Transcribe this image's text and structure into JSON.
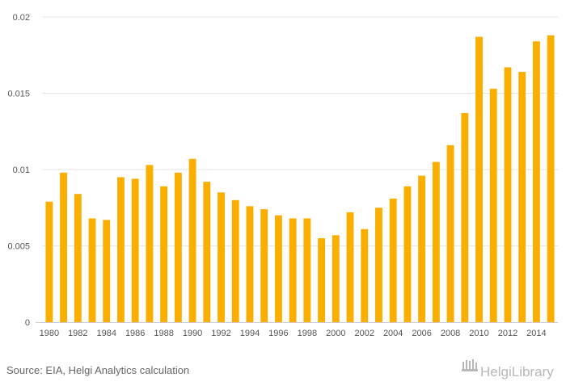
{
  "chart_data": {
    "type": "bar",
    "categories": [
      "1980",
      "1981",
      "1982",
      "1983",
      "1984",
      "1985",
      "1986",
      "1987",
      "1988",
      "1989",
      "1990",
      "1991",
      "1992",
      "1993",
      "1994",
      "1995",
      "1996",
      "1997",
      "1998",
      "1999",
      "2000",
      "2001",
      "2002",
      "2003",
      "2004",
      "2005",
      "2006",
      "2007",
      "2008",
      "2009",
      "2010",
      "2011",
      "2012",
      "2013",
      "2014",
      "2015"
    ],
    "values": [
      0.0079,
      0.0098,
      0.0084,
      0.0068,
      0.0067,
      0.0095,
      0.0094,
      0.0103,
      0.0089,
      0.0098,
      0.0107,
      0.0092,
      0.0085,
      0.008,
      0.0076,
      0.0074,
      0.007,
      0.0068,
      0.0068,
      0.0055,
      0.0057,
      0.0072,
      0.0061,
      0.0075,
      0.0081,
      0.0089,
      0.0096,
      0.0105,
      0.0116,
      0.0137,
      0.0187,
      0.0153,
      0.0167,
      0.0164,
      0.0184,
      0.0188
    ],
    "x_tick_labels": [
      "1980",
      "1982",
      "1984",
      "1986",
      "1988",
      "1990",
      "1992",
      "1994",
      "1996",
      "1998",
      "2000",
      "2002",
      "2004",
      "2006",
      "2008",
      "2010",
      "2012",
      "2014"
    ],
    "y_ticks": [
      0,
      0.005,
      0.01,
      0.015,
      0.02
    ],
    "y_tick_labels": [
      "0",
      "0.005",
      "0.01",
      "0.015",
      "0.02"
    ],
    "ylim": [
      0,
      0.02
    ],
    "title": "",
    "xlabel": "",
    "ylabel": "",
    "grid": true,
    "legend": "none"
  },
  "colors": {
    "bar": "#f9ae00",
    "grid": "#e6e6e6",
    "axis": "#cccccc",
    "logo": "#b8b8b8"
  },
  "footer": {
    "source": "Source: EIA, Helgi Analytics calculation",
    "logo_text": "HelgiLibrary"
  }
}
